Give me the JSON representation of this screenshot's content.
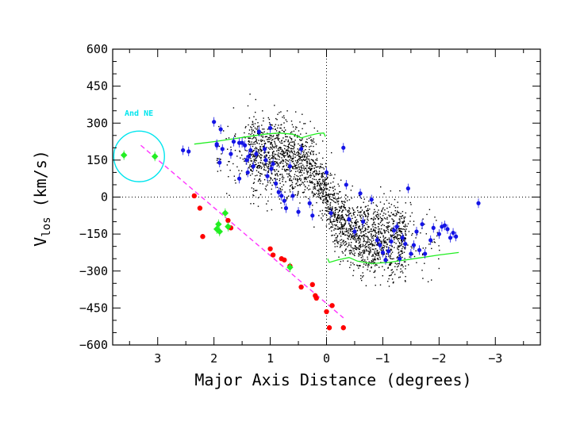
{
  "chart_data": {
    "type": "scatter",
    "xlabel": "Major Axis Distance (degrees)",
    "ylabel_main": "V",
    "ylabel_sub": "los",
    "ylabel_unit": "(km/s)",
    "xlim": [
      3.8,
      -3.8
    ],
    "ylim": [
      -600,
      600
    ],
    "xticks": [
      3,
      2,
      1,
      0,
      -1,
      -2,
      -3
    ],
    "xtick_labels": [
      "3",
      "2",
      "1",
      "0",
      "−1",
      "−2",
      "−3"
    ],
    "yticks": [
      600,
      450,
      300,
      150,
      0,
      -150,
      -300,
      -450,
      -600
    ],
    "ytick_labels": [
      "600",
      "450",
      "300",
      "150",
      "0",
      "−150",
      "−300",
      "−450",
      "−600"
    ],
    "annotation": "And NE",
    "colors": {
      "blue": "#1414e6",
      "red": "#ff0000",
      "green": "#22ee22",
      "magenta": "#ff33ff",
      "cyan": "#00e5ee",
      "black": "#000000"
    },
    "background_stars_note": "dense field of small black points (smooth disk population)",
    "series": [
      {
        "name": "blue",
        "points": [
          [
            2.55,
            190
          ],
          [
            2.45,
            185
          ],
          [
            2.0,
            305
          ],
          [
            1.95,
            215
          ],
          [
            1.95,
            210
          ],
          [
            1.9,
            140
          ],
          [
            1.88,
            275
          ],
          [
            1.85,
            195
          ],
          [
            1.7,
            175
          ],
          [
            1.65,
            225
          ],
          [
            1.55,
            220
          ],
          [
            1.55,
            75
          ],
          [
            1.5,
            220
          ],
          [
            1.45,
            210
          ],
          [
            1.42,
            150
          ],
          [
            1.4,
            100
          ],
          [
            1.38,
            165
          ],
          [
            1.35,
            190
          ],
          [
            1.3,
            125
          ],
          [
            1.25,
            175
          ],
          [
            1.2,
            265
          ],
          [
            1.1,
            195
          ],
          [
            1.08,
            150
          ],
          [
            1.05,
            85
          ],
          [
            1.0,
            280
          ],
          [
            0.98,
            115
          ],
          [
            0.95,
            135
          ],
          [
            0.9,
            55
          ],
          [
            0.85,
            20
          ],
          [
            0.8,
            5
          ],
          [
            0.75,
            -15
          ],
          [
            0.72,
            -45
          ],
          [
            0.65,
            125
          ],
          [
            0.6,
            5
          ],
          [
            0.5,
            -60
          ],
          [
            0.45,
            195
          ],
          [
            0.3,
            -25
          ],
          [
            0.25,
            -75
          ],
          [
            0.0,
            100
          ],
          [
            -0.08,
            -65
          ],
          [
            -0.3,
            200
          ],
          [
            -0.35,
            50
          ],
          [
            -0.4,
            -90
          ],
          [
            -0.5,
            -140
          ],
          [
            -0.6,
            15
          ],
          [
            -0.65,
            -100
          ],
          [
            -0.8,
            -10
          ],
          [
            -0.9,
            -175
          ],
          [
            -0.95,
            -195
          ],
          [
            -1.0,
            -225
          ],
          [
            -1.05,
            -255
          ],
          [
            -1.1,
            -220
          ],
          [
            -1.15,
            -180
          ],
          [
            -1.2,
            -135
          ],
          [
            -1.25,
            -120
          ],
          [
            -1.3,
            -250
          ],
          [
            -1.35,
            -165
          ],
          [
            -1.4,
            -190
          ],
          [
            -1.45,
            35
          ],
          [
            -1.5,
            -230
          ],
          [
            -1.55,
            -195
          ],
          [
            -1.6,
            -140
          ],
          [
            -1.65,
            -215
          ],
          [
            -1.7,
            -110
          ],
          [
            -1.75,
            -230
          ],
          [
            -1.85,
            -175
          ],
          [
            -1.9,
            -125
          ],
          [
            -2.0,
            -150
          ],
          [
            -2.05,
            -120
          ],
          [
            -2.1,
            -115
          ],
          [
            -2.15,
            -130
          ],
          [
            -2.2,
            -165
          ],
          [
            -2.25,
            -145
          ],
          [
            -2.3,
            -160
          ],
          [
            -2.7,
            -25
          ]
        ]
      },
      {
        "name": "red",
        "points": [
          [
            2.35,
            5
          ],
          [
            2.25,
            -45
          ],
          [
            2.2,
            -160
          ],
          [
            1.75,
            -95
          ],
          [
            1.7,
            -125
          ],
          [
            1.0,
            -210
          ],
          [
            0.95,
            -235
          ],
          [
            0.8,
            -250
          ],
          [
            0.75,
            -255
          ],
          [
            0.65,
            -280
          ],
          [
            0.45,
            -365
          ],
          [
            0.25,
            -355
          ],
          [
            0.2,
            -400
          ],
          [
            0.18,
            -410
          ],
          [
            0.0,
            -465
          ],
          [
            -0.05,
            -530
          ],
          [
            -0.1,
            -440
          ],
          [
            -0.3,
            -530
          ]
        ]
      },
      {
        "name": "green",
        "points": [
          [
            3.6,
            170
          ],
          [
            3.05,
            165
          ],
          [
            1.95,
            -130
          ],
          [
            1.92,
            -110
          ],
          [
            1.9,
            -140
          ],
          [
            1.8,
            -65
          ],
          [
            1.75,
            -120
          ],
          [
            0.65,
            -285
          ]
        ]
      }
    ],
    "dashed_line": {
      "name": "magenta-fit",
      "from": [
        3.3,
        210
      ],
      "to": [
        -0.3,
        -490
      ]
    },
    "rotation_curves": [
      {
        "name": "green-upper",
        "points": [
          [
            2.35,
            215
          ],
          [
            2.0,
            225
          ],
          [
            1.7,
            235
          ],
          [
            1.4,
            245
          ],
          [
            1.1,
            255
          ],
          [
            0.85,
            260
          ],
          [
            0.6,
            255
          ],
          [
            0.45,
            240
          ],
          [
            0.3,
            250
          ],
          [
            0.15,
            258
          ],
          [
            0.05,
            260
          ],
          [
            0.02,
            245
          ]
        ]
      },
      {
        "name": "green-lower",
        "points": [
          [
            -0.02,
            -250
          ],
          [
            -0.05,
            -265
          ],
          [
            -0.2,
            -255
          ],
          [
            -0.4,
            -245
          ],
          [
            -0.55,
            -260
          ],
          [
            -0.8,
            -270
          ],
          [
            -1.1,
            -265
          ],
          [
            -1.4,
            -255
          ],
          [
            -1.7,
            -245
          ],
          [
            -2.0,
            -235
          ],
          [
            -2.35,
            -225
          ]
        ]
      }
    ],
    "cyan_circle": {
      "center": [
        3.33,
        165
      ],
      "radius_deg_x": 0.45
    }
  }
}
